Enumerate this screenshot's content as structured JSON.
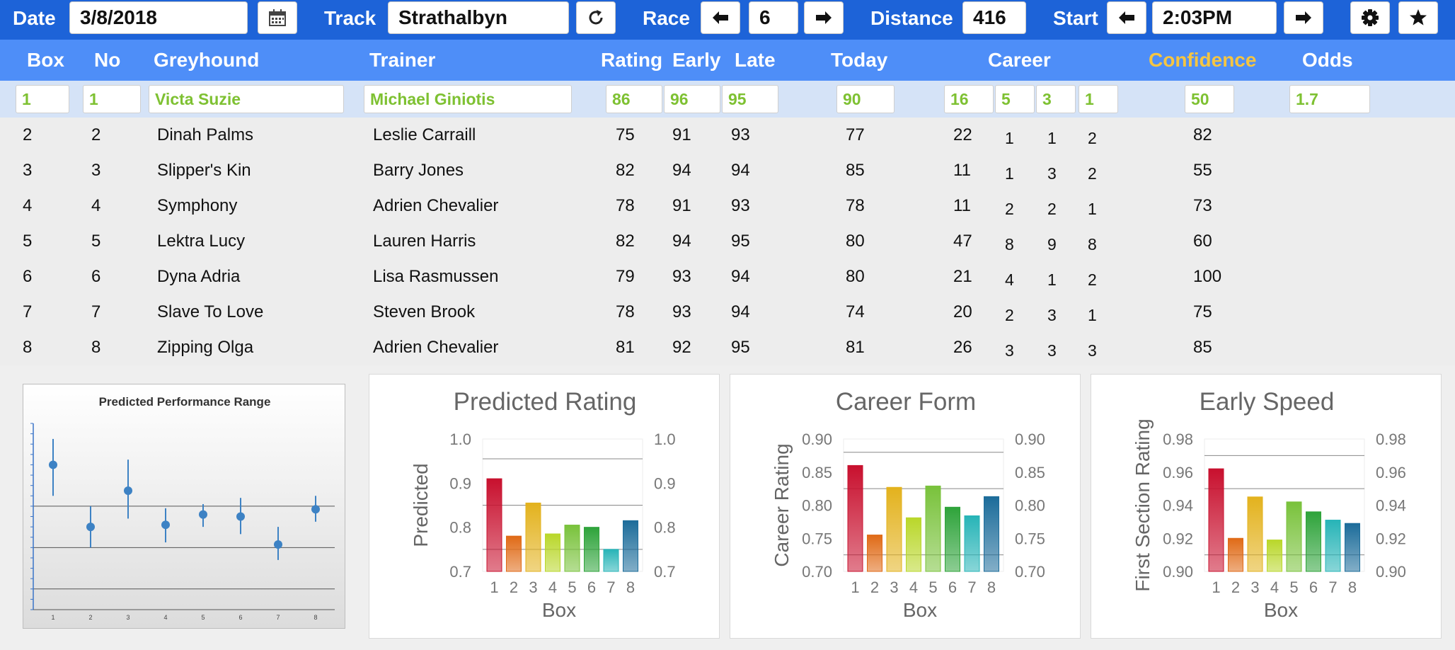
{
  "toolbar": {
    "date_label": "Date",
    "date_value": "3/8/2018",
    "calendar_icon": "calendar-icon",
    "track_label": "Track",
    "track_value": "Strathalbyn",
    "refresh_icon": "refresh-icon",
    "race_label": "Race",
    "race_value": "6",
    "distance_label": "Distance",
    "distance_value": "416",
    "start_label": "Start",
    "start_value": "2:03PM",
    "settings_icon": "gear-icon",
    "favorite_icon": "star-icon"
  },
  "table": {
    "headers": {
      "box": "Box",
      "no": "No",
      "greyhound": "Greyhound",
      "trainer": "Trainer",
      "rating": "Rating",
      "early": "Early",
      "late": "Late",
      "today": "Today",
      "career": "Career",
      "confidence": "Confidence",
      "odds": "Odds"
    },
    "selected": {
      "box": "1",
      "no": "1",
      "greyhound": "Victa Suzie",
      "trainer": "Michael Giniotis",
      "rating": "86",
      "early": "96",
      "late": "95",
      "today": "90",
      "career": [
        "16",
        "5",
        "3",
        "1"
      ],
      "confidence": "50",
      "odds": "1.7"
    },
    "rows": [
      {
        "box": "2",
        "no": "2",
        "greyhound": "Dinah Palms",
        "trainer": "Leslie Carraill",
        "rating": "75",
        "early": "91",
        "late": "93",
        "today": "77",
        "career": [
          "22",
          "1",
          "1",
          "2"
        ],
        "confidence": "82"
      },
      {
        "box": "3",
        "no": "3",
        "greyhound": "Slipper's Kin",
        "trainer": "Barry Jones",
        "rating": "82",
        "early": "94",
        "late": "94",
        "today": "85",
        "career": [
          "11",
          "1",
          "3",
          "2"
        ],
        "confidence": "55"
      },
      {
        "box": "4",
        "no": "4",
        "greyhound": "Symphony",
        "trainer": "Adrien Chevalier",
        "rating": "78",
        "early": "91",
        "late": "93",
        "today": "78",
        "career": [
          "11",
          "2",
          "2",
          "1"
        ],
        "confidence": "73"
      },
      {
        "box": "5",
        "no": "5",
        "greyhound": "Lektra Lucy",
        "trainer": "Lauren Harris",
        "rating": "82",
        "early": "94",
        "late": "95",
        "today": "80",
        "career": [
          "47",
          "8",
          "9",
          "8"
        ],
        "confidence": "60"
      },
      {
        "box": "6",
        "no": "6",
        "greyhound": "Dyna Adria",
        "trainer": "Lisa Rasmussen",
        "rating": "79",
        "early": "93",
        "late": "94",
        "today": "80",
        "career": [
          "21",
          "4",
          "1",
          "2"
        ],
        "confidence": "100"
      },
      {
        "box": "7",
        "no": "7",
        "greyhound": "Slave To Love",
        "trainer": "Steven Brook",
        "rating": "78",
        "early": "93",
        "late": "94",
        "today": "74",
        "career": [
          "20",
          "2",
          "3",
          "1"
        ],
        "confidence": "75"
      },
      {
        "box": "8",
        "no": "8",
        "greyhound": "Zipping Olga",
        "trainer": "Adrien Chevalier",
        "rating": "81",
        "early": "92",
        "late": "95",
        "today": "81",
        "career": [
          "26",
          "3",
          "3",
          "3"
        ],
        "confidence": "85"
      }
    ]
  },
  "colors": {
    "toolbar": "#1d63d8",
    "header": "#4e8ef8",
    "confidence_header": "#f5c542",
    "selected_text": "#7ec132",
    "selected_row": "#d5e3f7",
    "bars": [
      "#c8102e",
      "#e06a16",
      "#e3b21d",
      "#b9d72a",
      "#79c23b",
      "#2ea33a",
      "#27b4b7",
      "#1c6c9a"
    ]
  },
  "chart_data": [
    {
      "type": "scatter",
      "title": "Predicted Performance Range",
      "x": [
        "1",
        "2",
        "3",
        "4",
        "5",
        "6",
        "7",
        "8"
      ],
      "y": [
        0.92,
        0.86,
        0.895,
        0.862,
        0.872,
        0.87,
        0.843,
        0.877
      ],
      "y_low": [
        0.89,
        0.84,
        0.868,
        0.845,
        0.86,
        0.853,
        0.828,
        0.865
      ],
      "y_high": [
        0.945,
        0.88,
        0.925,
        0.878,
        0.882,
        0.888,
        0.86,
        0.89
      ],
      "ylim": [
        0.78,
        0.96
      ],
      "grid": true
    },
    {
      "type": "bar",
      "title": "Predicted Rating",
      "categories": [
        "1",
        "2",
        "3",
        "4",
        "5",
        "6",
        "7",
        "8"
      ],
      "values": [
        0.91,
        0.78,
        0.855,
        0.785,
        0.805,
        0.8,
        0.75,
        0.815
      ],
      "ylabel": "Predicted",
      "xlabel": "Box",
      "ylim": [
        0.7,
        1.0
      ],
      "yticks": [
        "0.7",
        "0.8",
        "0.9",
        "1.0"
      ],
      "gridlines": [
        0.75,
        0.85,
        0.955
      ],
      "secondary_axis": true
    },
    {
      "type": "bar",
      "title": "Career Form",
      "categories": [
        "1",
        "2",
        "3",
        "4",
        "5",
        "6",
        "7",
        "8"
      ],
      "values": [
        0.86,
        0.755,
        0.827,
        0.781,
        0.829,
        0.797,
        0.784,
        0.813
      ],
      "ylabel": "Career Rating",
      "xlabel": "Box",
      "ylim": [
        0.7,
        0.9
      ],
      "yticks": [
        "0.70",
        "0.75",
        "0.80",
        "0.85",
        "0.90"
      ],
      "gridlines": [
        0.725,
        0.825,
        0.88
      ],
      "secondary_axis": true
    },
    {
      "type": "bar",
      "title": "Early Speed",
      "categories": [
        "1",
        "2",
        "3",
        "4",
        "5",
        "6",
        "7",
        "8"
      ],
      "values": [
        0.962,
        0.92,
        0.945,
        0.919,
        0.942,
        0.936,
        0.931,
        0.929
      ],
      "ylabel": "First Section Rating",
      "xlabel": "Box",
      "ylim": [
        0.9,
        0.98
      ],
      "yticks": [
        "0.90",
        "0.92",
        "0.94",
        "0.96",
        "0.98"
      ],
      "gridlines": [
        0.91,
        0.95,
        0.97
      ],
      "secondary_axis": true
    }
  ]
}
